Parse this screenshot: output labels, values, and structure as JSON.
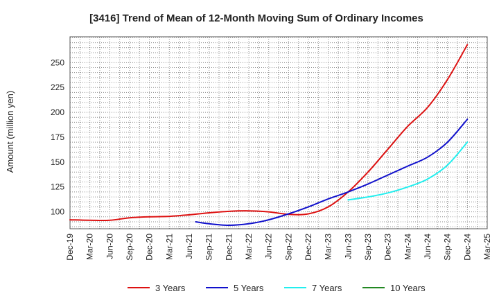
{
  "chart_data": {
    "type": "line",
    "title": "[3416]  Trend of Mean of 12-Month Moving Sum of Ordinary Incomes",
    "xlabel": "",
    "ylabel": "Amount (million yen)",
    "x_categories": [
      "Dec-19",
      "Mar-20",
      "Jun-20",
      "Sep-20",
      "Dec-20",
      "Mar-21",
      "Jun-21",
      "Sep-21",
      "Dec-21",
      "Mar-22",
      "Jun-22",
      "Sep-22",
      "Dec-22",
      "Mar-23",
      "Jun-23",
      "Sep-23",
      "Dec-23",
      "Mar-24",
      "Jun-24",
      "Sep-24",
      "Dec-24",
      "Mar-25"
    ],
    "ylim": [
      83,
      276
    ],
    "yticks": [
      100,
      125,
      150,
      175,
      200,
      225,
      250
    ],
    "grid": true,
    "series": [
      {
        "name": "3 Years",
        "color": "#dd1111",
        "points": [
          [
            0,
            92
          ],
          [
            1,
            91.5
          ],
          [
            2,
            91.5
          ],
          [
            3,
            94
          ],
          [
            4,
            95
          ],
          [
            5,
            95.5
          ],
          [
            6,
            97
          ],
          [
            7,
            99
          ],
          [
            8,
            100.5
          ],
          [
            9,
            101
          ],
          [
            10,
            100
          ],
          [
            11,
            97.5
          ],
          [
            12,
            98
          ],
          [
            13,
            105
          ],
          [
            14,
            120
          ],
          [
            15,
            140
          ],
          [
            16,
            163
          ],
          [
            17,
            186
          ],
          [
            18,
            205
          ],
          [
            19,
            233
          ],
          [
            20,
            268
          ]
        ]
      },
      {
        "name": "5 Years",
        "color": "#1111cc",
        "points": [
          [
            6.33,
            90
          ],
          [
            7,
            88
          ],
          [
            8,
            86.5
          ],
          [
            9,
            88
          ],
          [
            10,
            92
          ],
          [
            11,
            98
          ],
          [
            12,
            105
          ],
          [
            13,
            113
          ],
          [
            14,
            120
          ],
          [
            15,
            128
          ],
          [
            16,
            137
          ],
          [
            17,
            146
          ],
          [
            18,
            155
          ],
          [
            19,
            170
          ],
          [
            20,
            193
          ]
        ]
      },
      {
        "name": "7 Years",
        "color": "#22eeee",
        "points": [
          [
            14,
            112
          ],
          [
            15,
            115
          ],
          [
            16,
            119
          ],
          [
            17,
            125
          ],
          [
            18,
            133
          ],
          [
            19,
            147
          ],
          [
            20,
            170
          ]
        ]
      },
      {
        "name": "10 Years",
        "color": "#228822",
        "points": []
      }
    ]
  }
}
